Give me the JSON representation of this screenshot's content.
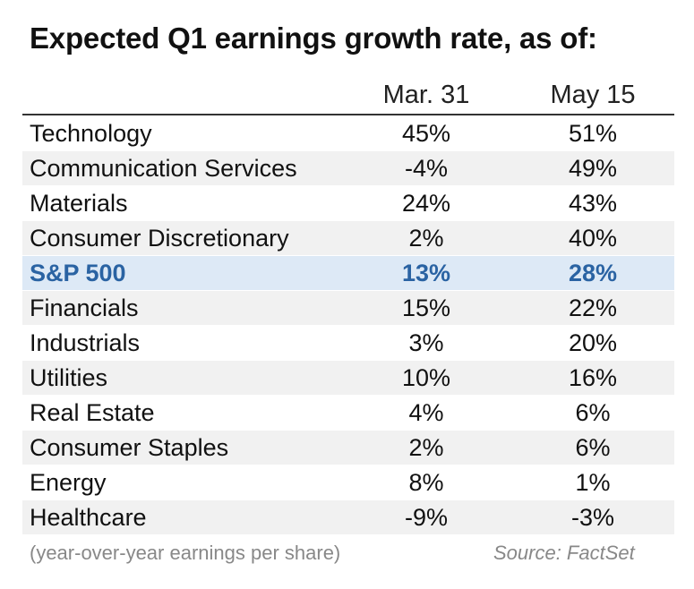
{
  "chart_data": {
    "type": "table",
    "title": "Expected Q1 earnings growth rate, as of:",
    "columns": [
      "Mar. 31",
      "May 15"
    ],
    "rows": [
      {
        "sector": "Technology",
        "values": [
          "45%",
          "51%"
        ]
      },
      {
        "sector": "Communication Services",
        "values": [
          "-4%",
          "49%"
        ]
      },
      {
        "sector": "Materials",
        "values": [
          "24%",
          "43%"
        ]
      },
      {
        "sector": "Consumer Discretionary",
        "values": [
          "2%",
          "40%"
        ]
      },
      {
        "sector": "S&P 500",
        "values": [
          "13%",
          "28%"
        ],
        "highlight": true
      },
      {
        "sector": "Financials",
        "values": [
          "15%",
          "22%"
        ]
      },
      {
        "sector": "Industrials",
        "values": [
          "3%",
          "20%"
        ]
      },
      {
        "sector": "Utilities",
        "values": [
          "10%",
          "16%"
        ]
      },
      {
        "sector": "Real Estate",
        "values": [
          "4%",
          "6%"
        ]
      },
      {
        "sector": "Consumer Staples",
        "values": [
          "2%",
          "6%"
        ]
      },
      {
        "sector": "Energy",
        "values": [
          "8%",
          "1%"
        ]
      },
      {
        "sector": "Healthcare",
        "values": [
          "-9%",
          "-3%"
        ]
      }
    ],
    "footnote": "(year-over-year earnings per share)",
    "source": "Source: FactSet",
    "colors": {
      "highlight_background": "#dde9f6",
      "highlight_text": "#2a63a3",
      "alternate_row": "#f1f1f1"
    }
  }
}
